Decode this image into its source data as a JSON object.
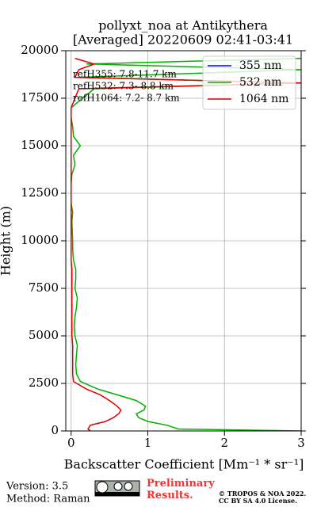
{
  "chart_data": {
    "type": "line",
    "orientation": "vertical-profile",
    "title": "pollyxt_noa at Antikythera",
    "subtitle": "[Averaged] 20220609 02:41-03:41",
    "x_label": "Backscatter Coefficient [Mm⁻¹ * sr⁻¹]",
    "y_label": "Height (m)",
    "xlim": [
      -0.07,
      3
    ],
    "ylim": [
      0,
      20000
    ],
    "xticks": [
      0,
      1,
      2,
      3
    ],
    "yticks": [
      0,
      2500,
      5000,
      7500,
      10000,
      12500,
      15000,
      17500,
      20000
    ],
    "grid": true,
    "legend_position": "upper right",
    "annotations": [
      "refH355:  7.8-11.7 km",
      "refH532:  7.3- 8.8 km",
      "refH1064:  7.2- 8.7 km"
    ],
    "heights": [
      0,
      100,
      300,
      500,
      700,
      900,
      1100,
      1300,
      1600,
      1900,
      2200,
      2600,
      3000,
      3500,
      4000,
      4500,
      5000,
      5500,
      6000,
      6500,
      7000,
      7500,
      8000,
      8500,
      9000,
      9500,
      10000,
      11000,
      11500,
      12000,
      13000,
      13500,
      14000,
      14500,
      15000,
      15500,
      16000,
      16500,
      17000,
      18000,
      18300,
      18600,
      19000,
      19300,
      19600
    ],
    "series": [
      {
        "name": "355 nm",
        "color": "#0000ff",
        "values": [
          null,
          null,
          null,
          null,
          null,
          null,
          null,
          null,
          null,
          null,
          null,
          null,
          null,
          null,
          null,
          null,
          null,
          null,
          null,
          null,
          null,
          null,
          null,
          null,
          null,
          null,
          null,
          null,
          null,
          null,
          null,
          null,
          null,
          null,
          null,
          null,
          null,
          null,
          null,
          null,
          null,
          null,
          null,
          null,
          null
        ]
      },
      {
        "name": "532 nm",
        "color": "#00b000",
        "values": [
          3.0,
          1.4,
          1.25,
          1.0,
          0.88,
          0.85,
          0.95,
          0.97,
          0.85,
          0.6,
          0.35,
          0.12,
          0.07,
          0.06,
          0.07,
          0.08,
          0.05,
          0.04,
          0.05,
          0.07,
          0.08,
          0.05,
          0.06,
          0.06,
          0.03,
          0.02,
          0.02,
          0.01,
          0.02,
          0.0,
          0.0,
          0.01,
          0.05,
          0.03,
          0.12,
          0.03,
          0.02,
          0.0,
          0.0,
          0.3,
          3.0,
          0.1,
          3.0,
          0.2,
          3.0
        ]
      },
      {
        "name": "1064 nm",
        "color": "#e00000",
        "values": [
          0.25,
          0.22,
          0.25,
          0.45,
          0.55,
          0.62,
          0.65,
          0.6,
          0.5,
          0.38,
          0.2,
          0.03,
          0.02,
          0.02,
          0.02,
          0.02,
          0.01,
          0.01,
          0.01,
          0.01,
          0.01,
          0.01,
          0.01,
          0.01,
          0.0,
          0.0,
          0.0,
          0.0,
          0.0,
          0.0,
          0.0,
          0.0,
          0.0,
          0.0,
          0.0,
          0.0,
          0.0,
          0.0,
          0.0,
          0.1,
          3.0,
          0.05,
          0.1,
          0.3,
          0.05
        ]
      }
    ],
    "footer": {
      "version": "Version: 3.5",
      "method": "Method: Raman",
      "status": "Preliminary Results.",
      "copyright": "© TROPOS & NOA 2022.",
      "license": "CC BY SA 4.0 License."
    }
  }
}
